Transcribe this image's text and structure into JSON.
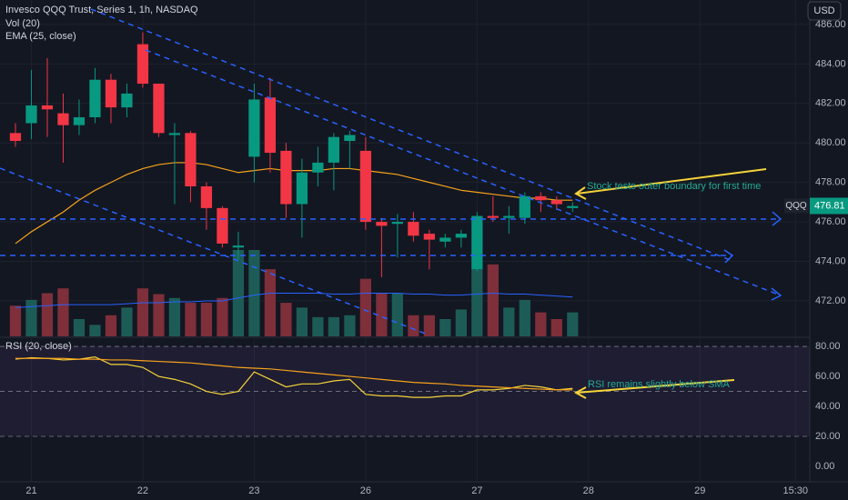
{
  "header": {
    "title": "Invesco QQQ Trust, Series 1, 1h, NASDAQ",
    "currency": "USD"
  },
  "chart_data": [
    {
      "type": "candlestick",
      "x": [
        0,
        1,
        2,
        3,
        4,
        5,
        6,
        7,
        8,
        9,
        10,
        11,
        12,
        13,
        14,
        15,
        16,
        17,
        18,
        19,
        20,
        21,
        22,
        23,
        24,
        25,
        26,
        27,
        28,
        29,
        30,
        31,
        32,
        33,
        34,
        35
      ],
      "open": [
        480.5,
        481.0,
        481.9,
        481.5,
        480.9,
        481.3,
        483.2,
        481.8,
        485.0,
        483.0,
        480.4,
        480.5,
        477.8,
        476.7,
        474.7,
        479.3,
        482.3,
        479.6,
        476.9,
        478.5,
        479.0,
        480.1,
        479.6,
        476.0,
        475.9,
        476.0,
        475.4,
        475.0,
        475.2,
        473.6,
        476.3,
        476.2,
        476.2,
        477.3,
        477.1,
        476.7
      ],
      "high": [
        481.0,
        483.7,
        484.3,
        482.5,
        482.2,
        483.8,
        483.5,
        483.0,
        485.6,
        483.0,
        481.0,
        480.6,
        478.0,
        476.8,
        475.5,
        483.0,
        483.3,
        480.0,
        479.2,
        479.8,
        480.5,
        480.6,
        480.3,
        476.2,
        476.4,
        476.5,
        475.6,
        475.4,
        475.6,
        476.5,
        477.3,
        476.8,
        477.5,
        477.5,
        477.3,
        477.0
      ],
      "low": [
        479.8,
        480.2,
        480.3,
        479.0,
        480.4,
        481.0,
        481.0,
        481.3,
        482.8,
        480.3,
        476.9,
        477.0,
        475.6,
        474.7,
        474.1,
        478.0,
        478.5,
        476.2,
        475.2,
        477.8,
        477.6,
        478.7,
        475.6,
        473.2,
        474.2,
        475.0,
        473.6,
        474.7,
        474.7,
        473.5,
        476.0,
        475.4,
        475.9,
        476.5,
        476.6,
        476.5
      ],
      "close": [
        480.1,
        481.9,
        481.7,
        480.9,
        481.3,
        483.2,
        481.8,
        482.5,
        483.0,
        480.5,
        480.5,
        477.8,
        476.7,
        474.9,
        474.8,
        482.2,
        479.5,
        476.9,
        478.5,
        479.0,
        480.3,
        480.4,
        476.0,
        475.8,
        476.0,
        475.3,
        475.1,
        475.2,
        475.4,
        476.3,
        476.2,
        476.3,
        477.3,
        477.1,
        476.9,
        476.8
      ],
      "up_color": "#089981",
      "down_color": "#f23645",
      "volume": {
        "name": "Vol (20)",
        "values": [
          32,
          38,
          45,
          50,
          18,
          12,
          22,
          30,
          50,
          44,
          40,
          35,
          35,
          40,
          90,
          90,
          70,
          35,
          30,
          20,
          20,
          22,
          60,
          45,
          45,
          22,
          22,
          18,
          28,
          70,
          75,
          30,
          38,
          25,
          18,
          25
        ],
        "ma": [
          30,
          31,
          32,
          33,
          33,
          33,
          33,
          34,
          35,
          35,
          36,
          36,
          37,
          37,
          40,
          43,
          45,
          45,
          45,
          45,
          44,
          44,
          45,
          45,
          45,
          44,
          44,
          43,
          43,
          44,
          45,
          44,
          44,
          43,
          42,
          41
        ],
        "up_color": "#1d5c56",
        "down_color": "#7e2f3a",
        "ma_color": "#2962ff"
      },
      "ema": {
        "name": "EMA (25, close)",
        "color": "#f7a21b",
        "values": [
          474.9,
          475.5,
          476.0,
          476.5,
          477.1,
          477.6,
          478.0,
          478.4,
          478.7,
          478.9,
          479.0,
          479.0,
          478.9,
          478.7,
          478.5,
          478.6,
          478.7,
          478.6,
          478.6,
          478.6,
          478.7,
          478.7,
          478.6,
          478.5,
          478.4,
          478.2,
          478.0,
          477.8,
          477.6,
          477.5,
          477.4,
          477.3,
          477.2,
          477.2,
          477.1,
          477.1
        ]
      },
      "xlim": [
        -0.97,
        49.9
      ],
      "ylim": [
        470.2,
        487.24
      ],
      "xticks": [
        {
          "value": 1,
          "label": "21"
        },
        {
          "value": 8,
          "label": "22"
        },
        {
          "value": 15,
          "label": "23"
        },
        {
          "value": 22,
          "label": "26"
        },
        {
          "value": 29,
          "label": "27"
        },
        {
          "value": 36,
          "label": "28"
        },
        {
          "value": 43,
          "label": "29"
        },
        {
          "value": 49,
          "label": "15:30"
        }
      ],
      "yticks": [
        {
          "value": 472,
          "label": "472.00"
        },
        {
          "value": 474,
          "label": "474.00"
        },
        {
          "value": 476,
          "label": "476.00"
        },
        {
          "value": 478,
          "label": "478.00"
        },
        {
          "value": 480,
          "label": "480.00"
        },
        {
          "value": 482,
          "label": "482.00"
        },
        {
          "value": 484,
          "label": "484.00"
        },
        {
          "value": 486,
          "label": "486.00"
        }
      ],
      "grid": true,
      "price_label": {
        "symbol": "QQQ",
        "value": 476.81
      },
      "annotation": "Stock tests outer boundary for first time"
    },
    {
      "type": "line",
      "title": "RSI (20, close)",
      "x": [
        0,
        1,
        2,
        3,
        4,
        5,
        6,
        7,
        8,
        9,
        10,
        11,
        12,
        13,
        14,
        15,
        16,
        17,
        18,
        19,
        20,
        21,
        22,
        23,
        24,
        25,
        26,
        27,
        28,
        29,
        30,
        31,
        32,
        33,
        34,
        35
      ],
      "series": [
        {
          "color": "#f5d33a",
          "values": [
            71.5,
            72.5,
            72,
            71,
            71.5,
            73,
            68,
            68,
            66,
            60,
            58,
            55,
            50,
            48,
            50,
            63,
            58,
            53,
            55,
            55,
            57,
            58,
            48,
            47,
            47,
            46,
            46,
            47,
            47,
            51,
            51,
            52,
            54,
            53,
            51,
            52
          ]
        },
        {
          "color": "#f7a21b",
          "values": [
            72,
            72,
            72,
            72,
            71.5,
            71.5,
            71,
            71,
            70.5,
            70,
            69.5,
            69,
            68,
            67,
            66,
            65.5,
            65,
            64,
            63,
            62,
            61,
            60,
            59,
            58,
            57,
            56,
            55.5,
            55,
            54,
            53.5,
            53,
            52.5,
            52,
            51.5,
            51,
            51
          ]
        }
      ],
      "levels": [
        20,
        50,
        80
      ],
      "band_color": "#7e57c2",
      "xlim": [
        -0.97,
        49.9
      ],
      "ylim": [
        -10.3,
        85.5
      ],
      "yticks": [
        {
          "value": 0,
          "label": "0.00"
        },
        {
          "value": 20,
          "label": "20.00"
        },
        {
          "value": 40,
          "label": "40.00"
        },
        {
          "value": 60,
          "label": "60.00"
        },
        {
          "value": 80,
          "label": "80.00"
        }
      ],
      "annotation": "RSI remains slightly below SMA"
    }
  ]
}
